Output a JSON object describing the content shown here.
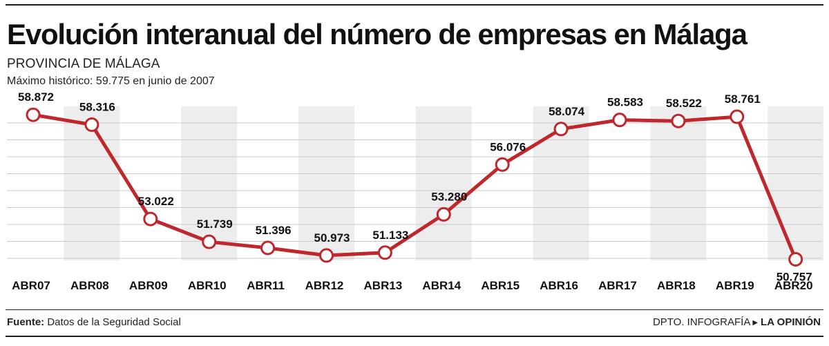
{
  "title": "Evolución interanual del número de empresas en Málaga",
  "subtitle": "PROVINCIA DE MÁLAGA",
  "note": "Máximo histórico: 59.775 en junio de 2007",
  "footer": {
    "source_label": "Fuente:",
    "source_text": "Datos de la Seguridad Social",
    "dept": "DPTO. INFOGRAFÍA",
    "brand": "LA OPINIÓN"
  },
  "colors": {
    "line": "#c0272d",
    "band": "#ededed",
    "grid": "#c9c9c9",
    "marker_fill": "#ffffff"
  },
  "chart_data": {
    "type": "line",
    "title": "Evolución interanual del número de empresas en Málaga",
    "xlabel": "",
    "ylabel": "",
    "grid": true,
    "ylim": [
      50000,
      59500
    ],
    "categories": [
      "ABR07",
      "ABR08",
      "ABR09",
      "ABR10",
      "ABR11",
      "ABR12",
      "ABR13",
      "ABR14",
      "ABR15",
      "ABR16",
      "ABR17",
      "ABR18",
      "ABR19",
      "ABR20"
    ],
    "values": [
      58872,
      58316,
      53022,
      51739,
      51396,
      50973,
      51133,
      53280,
      56076,
      58074,
      58583,
      58522,
      58761,
      50757
    ],
    "labels": [
      "58.872",
      "58.316",
      "53.022",
      "51.739",
      "51.396",
      "50.973",
      "51.133",
      "53.280",
      "56.076",
      "58.074",
      "58.583",
      "58.522",
      "58.761",
      "50.757"
    ],
    "label_positions": [
      "above",
      "above",
      "above",
      "above",
      "above",
      "above",
      "above",
      "above",
      "above",
      "above",
      "above",
      "above",
      "above",
      "below"
    ]
  }
}
